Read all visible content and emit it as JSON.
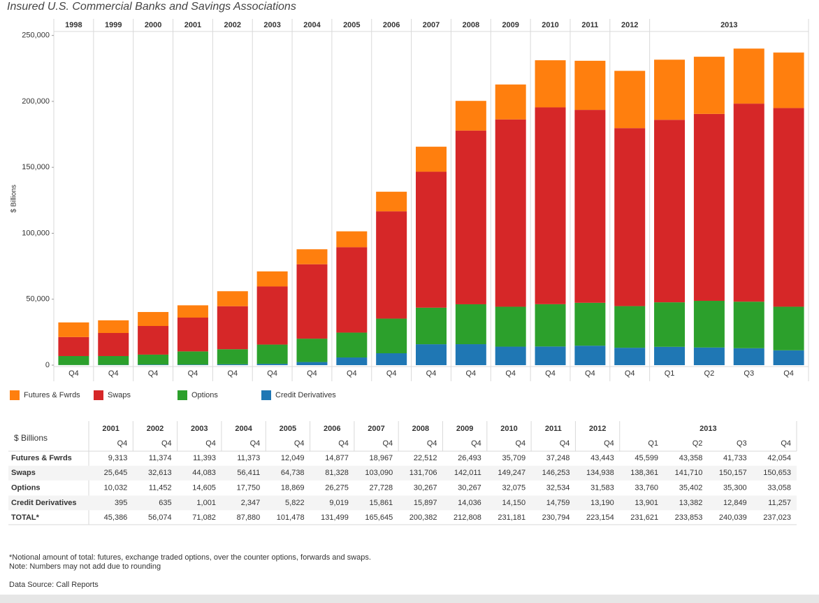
{
  "chart_data": {
    "type": "bar",
    "stacked": true,
    "title": "Insured U.S. Commercial Banks and Savings Associations",
    "y_label": "$ Billions",
    "years": [
      "1998",
      "1999",
      "2000",
      "2001",
      "2002",
      "2003",
      "2004",
      "2005",
      "2006",
      "2007",
      "2008",
      "2009",
      "2010",
      "2011",
      "2012",
      "2013"
    ],
    "categories": [
      "Q4",
      "Q4",
      "Q4",
      "Q4",
      "Q4",
      "Q4",
      "Q4",
      "Q4",
      "Q4",
      "Q4",
      "Q4",
      "Q4",
      "Q4",
      "Q4",
      "Q4",
      "Q1",
      "Q2",
      "Q3",
      "Q4"
    ],
    "series": [
      {
        "name": "Futures & Fwrds",
        "color": "#ff7f0e",
        "values": [
          11100,
          9600,
          10600,
          9313,
          11374,
          11393,
          11373,
          12049,
          14877,
          18967,
          22512,
          26493,
          35709,
          37248,
          43443,
          45599,
          43358,
          41733,
          42054
        ]
      },
      {
        "name": "Swaps",
        "color": "#d62728",
        "values": [
          14400,
          17500,
          21700,
          25645,
          32613,
          44083,
          56411,
          64738,
          81328,
          103090,
          131706,
          142011,
          149247,
          146253,
          134938,
          138361,
          141710,
          150157,
          150653
        ]
      },
      {
        "name": "Options",
        "color": "#2ca02c",
        "values": [
          6800,
          6700,
          7600,
          10032,
          11452,
          14605,
          17750,
          18869,
          26275,
          27728,
          30267,
          30267,
          32075,
          32534,
          31583,
          33760,
          35402,
          35300,
          33058
        ]
      },
      {
        "name": "Credit Derivatives",
        "color": "#1f77b4",
        "values": [
          100,
          200,
          400,
          395,
          635,
          1001,
          2347,
          5822,
          9019,
          15861,
          15897,
          14036,
          14150,
          14759,
          13190,
          13901,
          13382,
          12849,
          11257
        ]
      }
    ],
    "ylim": [
      0,
      253000
    ],
    "yticks": [
      0,
      {
        "value": 50000,
        "label": "50,000"
      },
      {
        "value": 100000,
        "label": "100,000"
      },
      {
        "value": 150000,
        "label": "150,000"
      },
      {
        "value": 200000,
        "label": "200,000"
      },
      {
        "value": 250000,
        "label": "250,000"
      }
    ],
    "grid": false
  },
  "table": {
    "corner": "$ Billions",
    "years": [
      "2001",
      "2002",
      "2003",
      "2004",
      "2005",
      "2006",
      "2007",
      "2008",
      "2009",
      "2010",
      "2011",
      "2012",
      "2013"
    ],
    "periods": [
      "Q4",
      "Q4",
      "Q4",
      "Q4",
      "Q4",
      "Q4",
      "Q4",
      "Q4",
      "Q4",
      "Q4",
      "Q4",
      "Q4",
      "Q1",
      "Q2",
      "Q3",
      "Q4"
    ],
    "rows": [
      {
        "label": "Futures & Fwrds",
        "values": [
          "9,313",
          "11,374",
          "11,393",
          "11,373",
          "12,049",
          "14,877",
          "18,967",
          "22,512",
          "26,493",
          "35,709",
          "37,248",
          "43,443",
          "45,599",
          "43,358",
          "41,733",
          "42,054"
        ]
      },
      {
        "label": "Swaps",
        "values": [
          "25,645",
          "32,613",
          "44,083",
          "56,411",
          "64,738",
          "81,328",
          "103,090",
          "131,706",
          "142,011",
          "149,247",
          "146,253",
          "134,938",
          "138,361",
          "141,710",
          "150,157",
          "150,653"
        ]
      },
      {
        "label": "Options",
        "values": [
          "10,032",
          "11,452",
          "14,605",
          "17,750",
          "18,869",
          "26,275",
          "27,728",
          "30,267",
          "30,267",
          "32,075",
          "32,534",
          "31,583",
          "33,760",
          "35,402",
          "35,300",
          "33,058"
        ]
      },
      {
        "label": "Credit Derivatives",
        "values": [
          "395",
          "635",
          "1,001",
          "2,347",
          "5,822",
          "9,019",
          "15,861",
          "15,897",
          "14,036",
          "14,150",
          "14,759",
          "13,190",
          "13,901",
          "13,382",
          "12,849",
          "11,257"
        ]
      },
      {
        "label": "TOTAL*",
        "values": [
          "45,386",
          "56,074",
          "71,082",
          "87,880",
          "101,478",
          "131,499",
          "165,645",
          "200,382",
          "212,808",
          "231,181",
          "230,794",
          "223,154",
          "231,621",
          "233,853",
          "240,039",
          "237,023"
        ]
      }
    ]
  },
  "notes": [
    "*Notional amount of total: futures, exchange traded options, over the counter options, forwards and swaps.",
    "Note:  Numbers may not add due to rounding",
    "Data Source: Call Reports"
  ]
}
